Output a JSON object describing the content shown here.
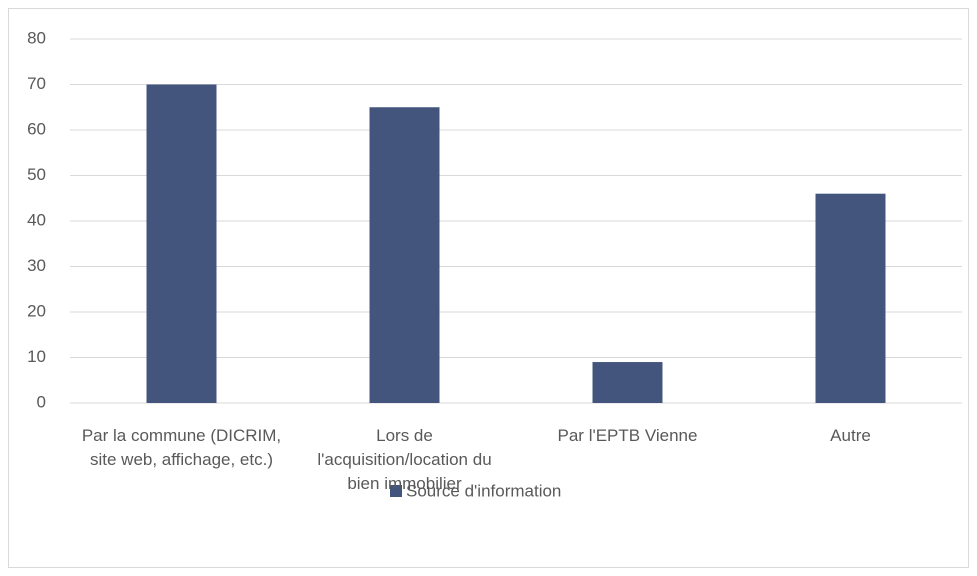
{
  "chart_data": {
    "type": "bar",
    "categories": [
      "Par la commune (DICRIM, site web, affichage, etc.)",
      "Lors de l'acquisition/location du bien immobilier",
      "Par l'EPTB Vienne",
      "Autre"
    ],
    "series": [
      {
        "name": "Source d'information",
        "color": "#43547d",
        "values": [
          70,
          65,
          9,
          46
        ]
      }
    ],
    "ylim": [
      0,
      80
    ],
    "yticks": [
      0,
      10,
      20,
      30,
      40,
      50,
      60,
      70,
      80
    ],
    "grid": true,
    "legend": "bottom"
  }
}
